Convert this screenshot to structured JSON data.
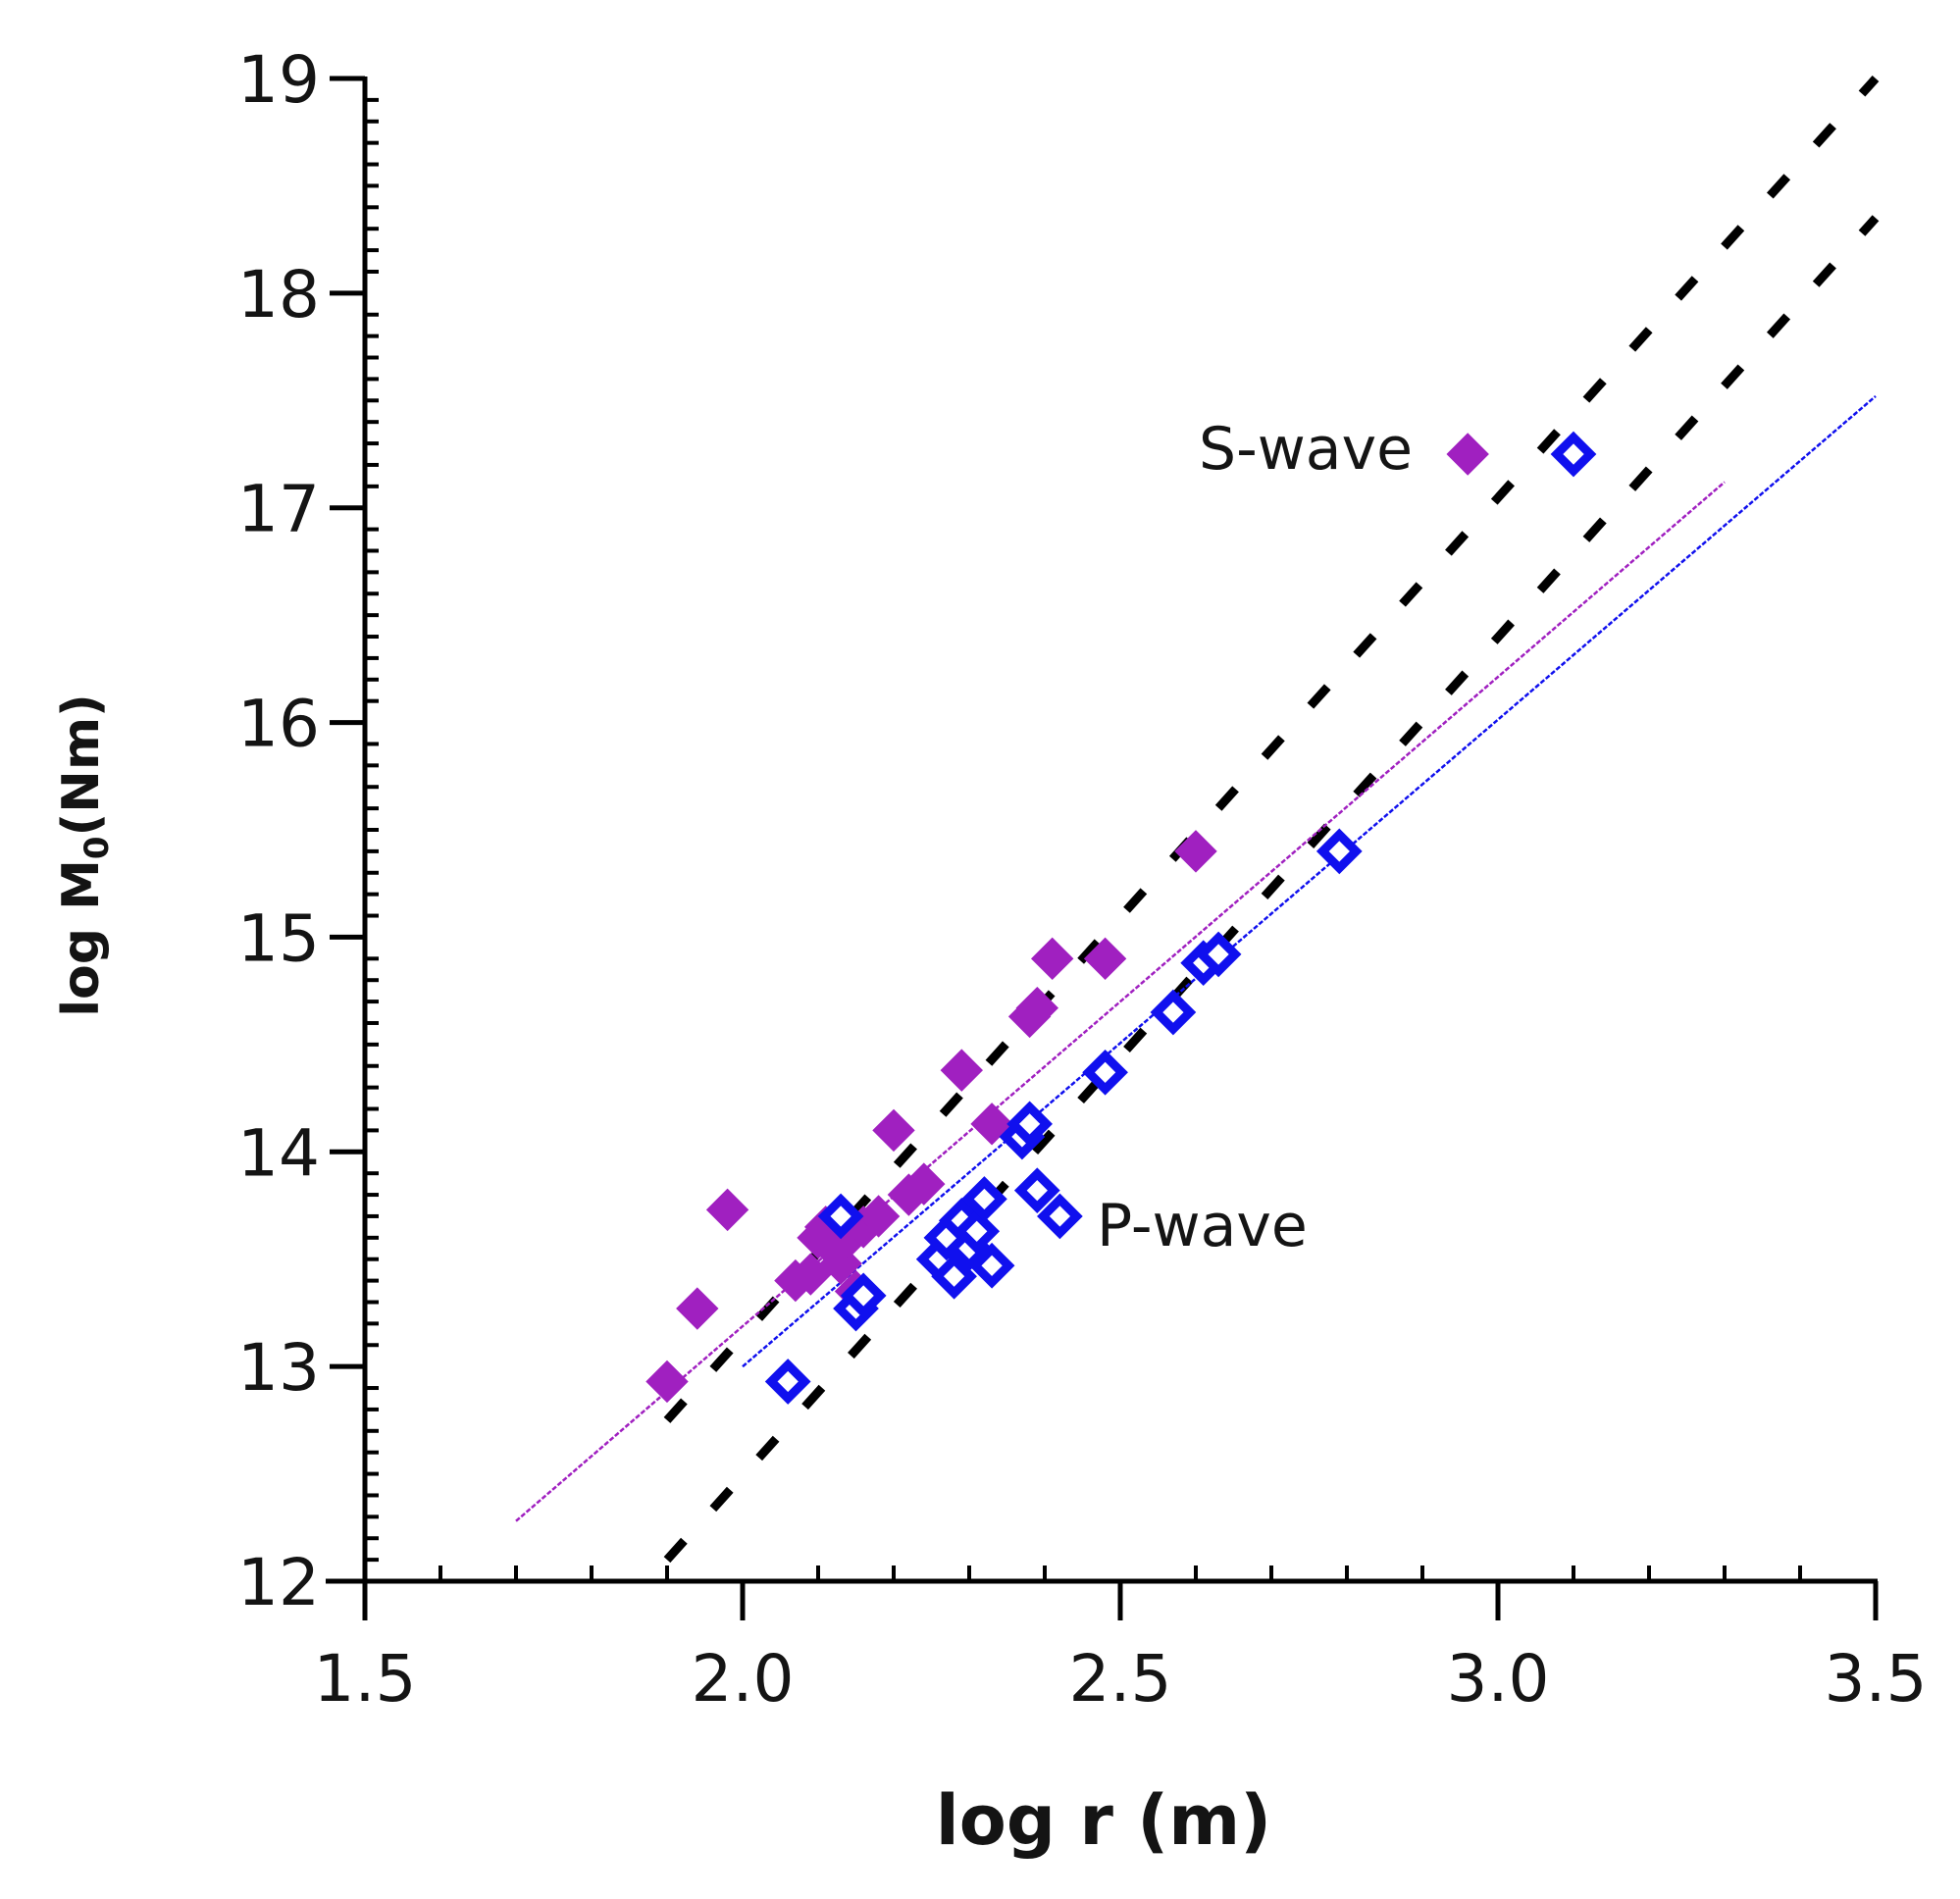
{
  "chart_data": {
    "type": "scatter",
    "title": "",
    "xlabel": "log r (m)",
    "ylabel": "log M",
    "ylabel_sub": "0",
    "ylabel_unit": "(Nm)",
    "xlim": [
      1.5,
      3.5
    ],
    "ylim": [
      12,
      19
    ],
    "x_ticks": [
      "1.5",
      "2.0",
      "2.5",
      "3.0",
      "3.5"
    ],
    "x_tick_values": [
      1.5,
      2.0,
      2.5,
      3.0,
      3.5
    ],
    "y_ticks": [
      "12",
      "13",
      "14",
      "15",
      "16",
      "17",
      "18",
      "19"
    ],
    "y_tick_values": [
      12,
      13,
      14,
      15,
      16,
      17,
      18,
      19
    ],
    "grid": false,
    "annotations": [
      {
        "text": "S-wave",
        "x": 2.75,
        "y": 17.2
      },
      {
        "text": "P-wave",
        "x": 2.47,
        "y": 13.67
      }
    ],
    "series": [
      {
        "name": "S-wave",
        "color": "#a020c0",
        "marker": "diamond-filled",
        "points": [
          [
            1.9,
            12.93
          ],
          [
            1.94,
            13.27
          ],
          [
            1.98,
            13.73
          ],
          [
            2.07,
            13.4
          ],
          [
            2.09,
            13.43
          ],
          [
            2.1,
            13.6
          ],
          [
            2.11,
            13.65
          ],
          [
            2.12,
            13.55
          ],
          [
            2.13,
            13.7
          ],
          [
            2.13,
            13.48
          ],
          [
            2.14,
            13.6
          ],
          [
            2.15,
            13.35
          ],
          [
            2.16,
            13.65
          ],
          [
            2.18,
            13.7
          ],
          [
            2.2,
            14.1
          ],
          [
            2.22,
            13.8
          ],
          [
            2.24,
            13.85
          ],
          [
            2.29,
            14.38
          ],
          [
            2.33,
            14.13
          ],
          [
            2.38,
            14.63
          ],
          [
            2.39,
            14.67
          ],
          [
            2.41,
            14.9
          ],
          [
            2.48,
            14.9
          ],
          [
            2.6,
            15.4
          ],
          [
            2.96,
            17.25
          ]
        ]
      },
      {
        "name": "P-wave",
        "color": "#1010ee",
        "marker": "diamond-open",
        "points": [
          [
            2.06,
            12.93
          ],
          [
            2.13,
            13.7
          ],
          [
            2.15,
            13.27
          ],
          [
            2.16,
            13.33
          ],
          [
            2.26,
            13.5
          ],
          [
            2.27,
            13.6
          ],
          [
            2.28,
            13.42
          ],
          [
            2.29,
            13.68
          ],
          [
            2.3,
            13.55
          ],
          [
            2.31,
            13.63
          ],
          [
            2.32,
            13.78
          ],
          [
            2.33,
            13.47
          ],
          [
            2.37,
            14.07
          ],
          [
            2.38,
            14.13
          ],
          [
            2.39,
            13.82
          ],
          [
            2.42,
            13.7
          ],
          [
            2.48,
            14.37
          ],
          [
            2.57,
            14.65
          ],
          [
            2.61,
            14.88
          ],
          [
            2.63,
            14.92
          ],
          [
            2.79,
            15.4
          ],
          [
            3.1,
            17.25
          ]
        ]
      }
    ],
    "fit_lines": [
      {
        "name": "S-wave fit",
        "color": "#a020c0",
        "style": "thin-dotted",
        "x": [
          1.7,
          3.3
        ],
        "y": [
          12.28,
          17.12
        ]
      },
      {
        "name": "P-wave fit",
        "color": "#1010ee",
        "style": "thin-dotted",
        "x": [
          2.0,
          3.5
        ],
        "y": [
          13.0,
          17.52
        ]
      }
    ],
    "reference_lines": [
      {
        "name": "reference line upper",
        "color": "#000000",
        "style": "dashed",
        "x": [
          1.9,
          3.5
        ],
        "y": [
          12.75,
          19.0
        ]
      },
      {
        "name": "reference line lower",
        "color": "#000000",
        "style": "dashed",
        "x": [
          1.9,
          3.5
        ],
        "y": [
          12.1,
          18.35
        ]
      }
    ]
  }
}
